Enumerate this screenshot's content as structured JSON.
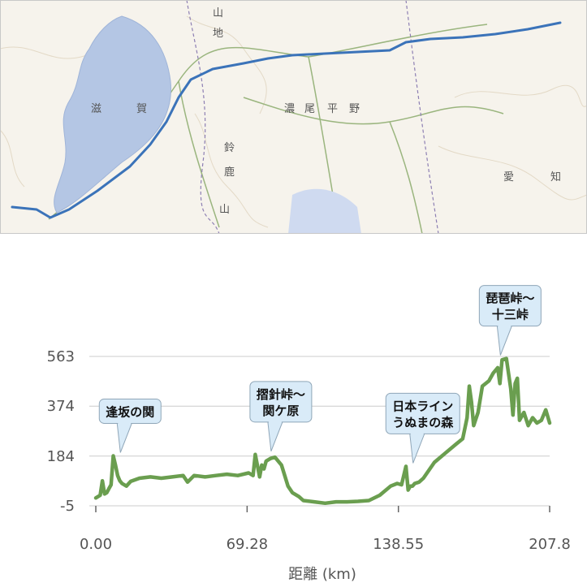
{
  "map": {
    "region_labels": [
      "滋",
      "賀",
      "濃",
      "尾",
      "平",
      "野",
      "愛",
      "知",
      "山",
      "地",
      "鈴",
      "鹿",
      "山"
    ],
    "colors": {
      "route": "#3b73b9",
      "lake": "#b4c6e4",
      "land": "#f6f3ec",
      "road": "#9ab57e"
    }
  },
  "chart_data": {
    "type": "area",
    "xlabel": "距離 (km)",
    "ylabel": "",
    "x_ticks": [
      0.0,
      69.28,
      138.55,
      207.8
    ],
    "x_tick_labels": [
      "0.00",
      "69.28",
      "138.55",
      "207.8"
    ],
    "y_ticks": [
      -5,
      184,
      374,
      563
    ],
    "y_tick_labels": [
      "-5",
      "184",
      "374",
      "563"
    ],
    "xlim": [
      0,
      207.8
    ],
    "ylim": [
      -5,
      563
    ],
    "grid": true,
    "series": [
      {
        "color": "#6a9e4f",
        "x": [
          0,
          2,
          3,
          4,
          5,
          6,
          7,
          8,
          9,
          10,
          11,
          12,
          14,
          16,
          20,
          25,
          30,
          35,
          40,
          42,
          45,
          50,
          55,
          60,
          65,
          70,
          72,
          73,
          75,
          76,
          77,
          78,
          80,
          82,
          85,
          88,
          90,
          93,
          95,
          100,
          105,
          110,
          115,
          120,
          125,
          130,
          135,
          138,
          140,
          142,
          143,
          144,
          145,
          146,
          148,
          150,
          155,
          160,
          165,
          168,
          170,
          171,
          172,
          173,
          175,
          177,
          180,
          182,
          184,
          185,
          186,
          188,
          190,
          191,
          192,
          193,
          194,
          196,
          198,
          200,
          202,
          204,
          206,
          207.8
        ],
        "y": [
          25,
          35,
          90,
          40,
          45,
          60,
          75,
          185,
          150,
          110,
          90,
          80,
          70,
          88,
          100,
          105,
          100,
          105,
          110,
          85,
          110,
          105,
          110,
          115,
          110,
          120,
          110,
          190,
          105,
          150,
          135,
          165,
          175,
          180,
          150,
          70,
          45,
          30,
          15,
          10,
          5,
          10,
          10,
          12,
          15,
          35,
          70,
          80,
          75,
          145,
          55,
          70,
          70,
          80,
          85,
          100,
          160,
          195,
          230,
          250,
          330,
          450,
          390,
          300,
          350,
          450,
          470,
          500,
          520,
          460,
          550,
          555,
          440,
          340,
          460,
          480,
          320,
          350,
          300,
          330,
          310,
          320,
          360,
          310
        ]
      }
    ],
    "annotations": [
      {
        "lines": [
          "逢坂の関"
        ],
        "x": 12,
        "y": 185
      },
      {
        "lines": [
          "摺針峠～",
          "関ケ原"
        ],
        "x": 81,
        "y": 190
      },
      {
        "lines": [
          "日本ライン",
          "うぬまの森"
        ],
        "x": 146,
        "y": 145
      },
      {
        "lines": [
          "琵琶峠～",
          "十三峠"
        ],
        "x": 186,
        "y": 555
      }
    ]
  }
}
